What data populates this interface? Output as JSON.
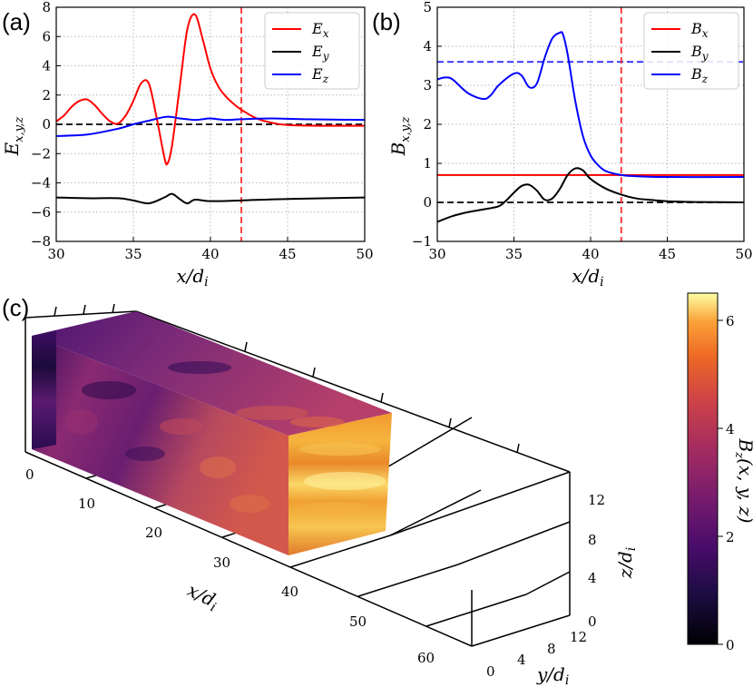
{
  "panels": {
    "a": "(a)",
    "b": "(b)",
    "c": "(c)"
  },
  "chart_data": [
    {
      "type": "line",
      "id": "a",
      "xlabel": "x/d_i",
      "ylabel": "E_{x,y,z}",
      "xlim": [
        30,
        50
      ],
      "ylim": [
        -8,
        8
      ],
      "xticks": [
        30,
        35,
        40,
        45,
        50
      ],
      "yticks": [
        -8,
        -6,
        -4,
        -2,
        0,
        2,
        4,
        6,
        8
      ],
      "grid": true,
      "legend_position": "top-right",
      "vlines": [
        {
          "x": 42,
          "color": "#ff3030",
          "style": "dashed"
        }
      ],
      "hlines": [
        {
          "y": 0,
          "color": "#000000",
          "style": "dashed"
        }
      ],
      "series": [
        {
          "name": "E_x",
          "color": "#ff0000",
          "x": [
            30,
            30.5,
            31,
            31.5,
            32,
            32.5,
            33,
            33.5,
            34,
            34.5,
            35,
            35.5,
            36,
            36.5,
            37,
            37.2,
            37.5,
            38,
            38.5,
            39,
            39.5,
            40,
            40.5,
            41,
            41.5,
            42,
            43,
            44,
            45,
            47,
            50
          ],
          "y": [
            0.2,
            0.6,
            1.2,
            1.6,
            1.7,
            1.3,
            0.7,
            0.2,
            0.05,
            0.6,
            1.6,
            2.8,
            2.8,
            0.5,
            -2.2,
            -2.7,
            -1.5,
            2.5,
            6.5,
            7.5,
            5.8,
            3.8,
            2.6,
            1.9,
            1.4,
            1.0,
            0.4,
            0.1,
            -0.05,
            -0.1,
            -0.1
          ]
        },
        {
          "name": "E_y",
          "color": "#000000",
          "x": [
            30,
            32,
            34,
            35,
            36,
            37,
            37.5,
            38,
            38.5,
            39,
            40,
            42,
            45,
            50
          ],
          "y": [
            -5.0,
            -5.05,
            -5.05,
            -5.2,
            -5.4,
            -5.0,
            -4.75,
            -5.1,
            -5.4,
            -5.15,
            -5.25,
            -5.2,
            -5.1,
            -5.0
          ]
        },
        {
          "name": "E_z",
          "color": "#0000ff",
          "x": [
            30,
            32,
            34,
            35,
            36,
            37,
            37.5,
            38,
            38.5,
            39,
            39.5,
            40,
            41,
            42,
            44,
            46,
            50
          ],
          "y": [
            -0.8,
            -0.7,
            -0.3,
            0.0,
            0.25,
            0.5,
            0.5,
            0.4,
            0.35,
            0.3,
            0.35,
            0.4,
            0.3,
            0.35,
            0.4,
            0.35,
            0.3
          ]
        }
      ]
    },
    {
      "type": "line",
      "id": "b",
      "xlabel": "x/d_i",
      "ylabel": "B_{x,y,z}",
      "xlim": [
        30,
        50
      ],
      "ylim": [
        -1,
        5
      ],
      "xticks": [
        30,
        35,
        40,
        45,
        50
      ],
      "yticks": [
        -1,
        0,
        1,
        2,
        3,
        4,
        5
      ],
      "grid": true,
      "legend_position": "top-right",
      "vlines": [
        {
          "x": 42,
          "color": "#ff3030",
          "style": "dashed"
        }
      ],
      "hlines": [
        {
          "y": 0,
          "color": "#000000",
          "style": "dashed"
        },
        {
          "y": 3.6,
          "color": "#3030ff",
          "style": "dashed"
        }
      ],
      "series": [
        {
          "name": "B_x",
          "color": "#ff0000",
          "x": [
            30,
            50
          ],
          "y": [
            0.7,
            0.7
          ]
        },
        {
          "name": "B_y",
          "color": "#000000",
          "x": [
            30,
            31,
            32,
            33,
            34,
            34.5,
            35,
            35.5,
            36,
            36.5,
            37,
            37.5,
            38,
            38.5,
            39,
            39.5,
            40,
            41,
            42,
            43,
            44,
            45,
            47,
            50
          ],
          "y": [
            -0.5,
            -0.35,
            -0.25,
            -0.18,
            -0.1,
            0.05,
            0.25,
            0.42,
            0.45,
            0.3,
            0.07,
            0.1,
            0.35,
            0.7,
            0.87,
            0.82,
            0.6,
            0.35,
            0.2,
            0.1,
            0.06,
            0.03,
            0.01,
            0.0
          ]
        },
        {
          "name": "B_z",
          "color": "#0000ff",
          "x": [
            30,
            30.5,
            31,
            32,
            33,
            33.5,
            34,
            35,
            35.5,
            36,
            36.5,
            37,
            37.5,
            38,
            38.2,
            38.5,
            39,
            39.5,
            40,
            40.5,
            41,
            42,
            43,
            45,
            50
          ],
          "y": [
            3.15,
            3.2,
            3.15,
            2.8,
            2.65,
            2.75,
            3.0,
            3.3,
            3.25,
            2.95,
            3.05,
            3.7,
            4.2,
            4.35,
            4.3,
            3.8,
            2.6,
            1.7,
            1.2,
            0.95,
            0.8,
            0.7,
            0.67,
            0.65,
            0.65
          ]
        }
      ]
    },
    {
      "type": "heatmap",
      "id": "c",
      "xlabel": "x/d_i",
      "ylabel": "y/d_i",
      "zlabel": "z/d_i",
      "x_ticks": [
        0,
        10,
        20,
        30,
        40,
        50,
        60
      ],
      "y_ticks": [
        0,
        4,
        8,
        12
      ],
      "z_ticks": [
        0,
        4,
        8,
        12
      ],
      "colorbar": {
        "label": "B_z(x, y, z)",
        "ticks": [
          0,
          2,
          4,
          6
        ],
        "range": [
          0,
          6.5
        ],
        "colormap": "inferno"
      }
    }
  ]
}
